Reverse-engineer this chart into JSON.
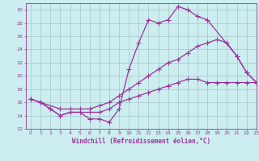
{
  "bg_color": "#cceef0",
  "grid_color": "#aacccc",
  "line_color": "#993399",
  "xlabel": "Windchill (Refroidissement éolien,°C)",
  "xlim": [
    -0.5,
    23
  ],
  "ylim": [
    12,
    31
  ],
  "xticks": [
    0,
    1,
    2,
    3,
    4,
    5,
    6,
    7,
    8,
    9,
    10,
    11,
    12,
    13,
    14,
    15,
    16,
    17,
    18,
    19,
    20,
    21,
    22,
    23
  ],
  "yticks": [
    12,
    14,
    16,
    18,
    20,
    22,
    24,
    26,
    28,
    30
  ],
  "line1_x": [
    0,
    1,
    2,
    3,
    4,
    5,
    6,
    7,
    8,
    9,
    10,
    11,
    12,
    13,
    14,
    15,
    16,
    17,
    18,
    21,
    22,
    23
  ],
  "line1_y": [
    16.5,
    16.0,
    15.0,
    14.0,
    14.5,
    14.5,
    13.5,
    13.5,
    13.0,
    15.0,
    21.0,
    25.0,
    28.5,
    28.0,
    28.5,
    30.5,
    30.0,
    29.0,
    28.5,
    23.0,
    20.5,
    19.0
  ],
  "line2_x": [
    0,
    1,
    3,
    4,
    5,
    6,
    7,
    8,
    9,
    10,
    11,
    12,
    13,
    14,
    15,
    16,
    17,
    18,
    19,
    20,
    21,
    22,
    23
  ],
  "line2_y": [
    16.5,
    16.0,
    15.0,
    15.0,
    15.0,
    15.0,
    15.5,
    16.0,
    17.0,
    18.0,
    19.0,
    20.0,
    21.0,
    22.0,
    22.5,
    23.5,
    24.5,
    25.0,
    25.5,
    25.0,
    23.0,
    20.5,
    19.0
  ],
  "line3_x": [
    0,
    1,
    2,
    3,
    4,
    5,
    6,
    7,
    8,
    9,
    10,
    11,
    12,
    13,
    14,
    15,
    16,
    17,
    18,
    19,
    20,
    21,
    22,
    23
  ],
  "line3_y": [
    16.5,
    16.0,
    15.0,
    14.0,
    14.5,
    14.5,
    14.5,
    14.5,
    15.0,
    16.0,
    16.5,
    17.0,
    17.5,
    18.0,
    18.5,
    19.0,
    19.5,
    19.5,
    19.0,
    19.0,
    19.0,
    19.0,
    19.0,
    19.0
  ]
}
